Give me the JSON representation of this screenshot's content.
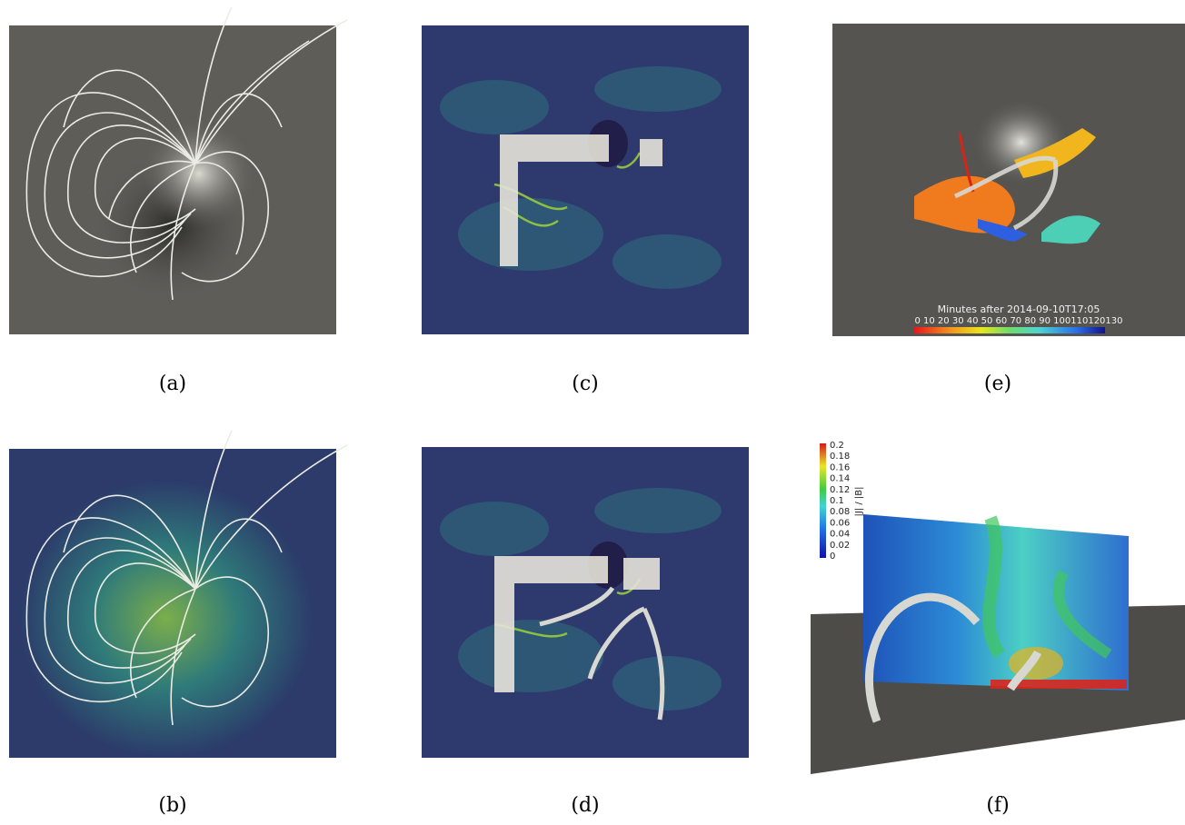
{
  "captions": {
    "a": "(a)",
    "b": "(b)",
    "c": "(c)",
    "d": "(d)",
    "e": "(e)",
    "f": "(f)"
  },
  "panel_e": {
    "colorbar_title": "Minutes after 2014-09-10T17:05",
    "colorbar_ticks": "0  10  20  30  40  50  60  70  80  90 100110120130"
  },
  "panel_f": {
    "colorbar_label": "|J| / |B|",
    "colorbar_ticks": [
      "0.2",
      "0.18",
      "0.16",
      "0.14",
      "0.12",
      "0.1",
      "0.08",
      "0.06",
      "0.04",
      "0.02",
      "0"
    ]
  },
  "colors": {
    "magnetogram_gray": "#5e5d58",
    "aia_teal": "#2d5e72",
    "line_white": "#ecece6"
  }
}
